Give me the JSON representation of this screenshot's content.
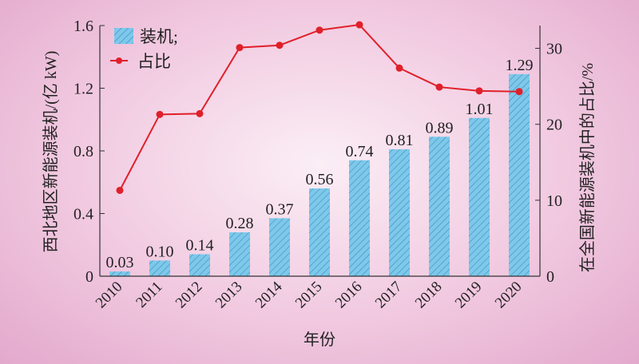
{
  "chart_data": {
    "type": "bar+line",
    "xlabel": "年份",
    "ylabel": "西北地区新能源装机/(亿 kW)",
    "y2label": "在全国新能源装机中的占比/%",
    "categories": [
      "2010",
      "2011",
      "2012",
      "2013",
      "2014",
      "2015",
      "2016",
      "2017",
      "2018",
      "2019",
      "2020"
    ],
    "ylim": [
      0,
      1.6
    ],
    "yticks": [
      "0",
      "0.4",
      "0.8",
      "1.2",
      "1.6"
    ],
    "y2lim": [
      0,
      33
    ],
    "y2ticks": [
      "0",
      "10",
      "20",
      "30"
    ],
    "series": [
      {
        "name": "装机;",
        "type": "bar",
        "axis": "left",
        "values": [
          0.03,
          0.1,
          0.14,
          0.28,
          0.37,
          0.56,
          0.74,
          0.81,
          0.89,
          1.01,
          1.29
        ],
        "labels": [
          "0.03",
          "0.10",
          "0.14",
          "0.28",
          "0.37",
          "0.56",
          "0.74",
          "0.81",
          "0.89",
          "1.01",
          "1.29"
        ],
        "color": "#7ec8ea",
        "hatch": "#3a8fc0"
      },
      {
        "name": "占比",
        "type": "line",
        "axis": "right",
        "values": [
          11.3,
          21.3,
          21.4,
          30.1,
          30.4,
          32.4,
          33.1,
          27.4,
          24.9,
          24.4,
          24.3
        ],
        "color": "#e0202a"
      }
    ],
    "legend": "top-left",
    "grid": false
  }
}
